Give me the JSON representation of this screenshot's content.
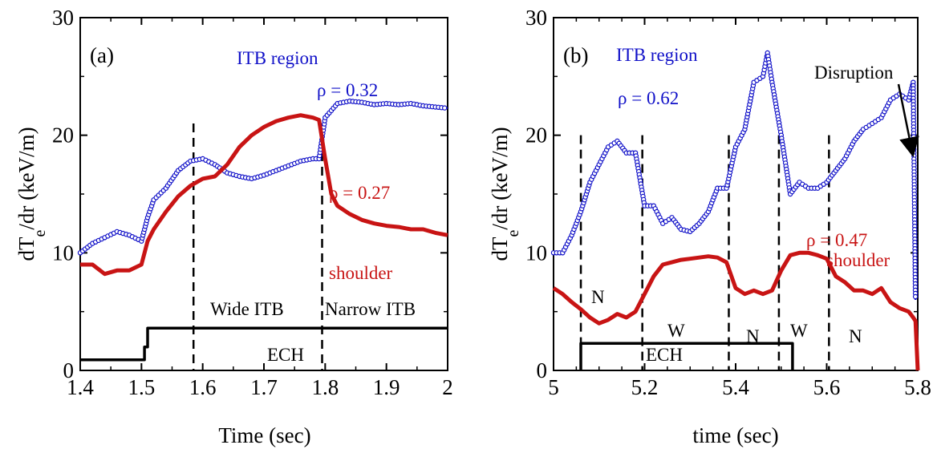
{
  "chart_data": [
    {
      "panel_label": "(a)",
      "type": "line",
      "xlabel": "Time (sec)",
      "ylabel": "dT",
      "ylabel_sub": "e",
      "ylabel_tail": "/dr (keV/m)",
      "xlim": [
        1.4,
        2.0
      ],
      "ylim": [
        0,
        30
      ],
      "xticks": [
        "1.4",
        "1.5",
        "1.6",
        "1.7",
        "1.8",
        "1.9",
        "2"
      ],
      "yticks": [
        "0",
        "10",
        "20",
        "30"
      ],
      "vlines": [
        1.585,
        1.795
      ],
      "series": [
        {
          "name": "ρ = 0.32",
          "color": "#1010c8",
          "marker": "circle",
          "x": [
            1.4,
            1.42,
            1.44,
            1.46,
            1.48,
            1.5,
            1.51,
            1.52,
            1.54,
            1.56,
            1.58,
            1.6,
            1.62,
            1.64,
            1.66,
            1.68,
            1.7,
            1.72,
            1.74,
            1.76,
            1.78,
            1.79,
            1.8,
            1.82,
            1.84,
            1.86,
            1.88,
            1.9,
            1.92,
            1.94,
            1.96,
            1.98,
            2.0
          ],
          "y": [
            10.0,
            10.8,
            11.3,
            11.8,
            11.5,
            11.0,
            13.0,
            14.5,
            15.5,
            17.0,
            17.8,
            18.0,
            17.5,
            16.8,
            16.5,
            16.3,
            16.6,
            17.0,
            17.4,
            17.8,
            18.0,
            18.0,
            21.5,
            22.7,
            22.9,
            22.8,
            22.6,
            22.7,
            22.6,
            22.7,
            22.5,
            22.4,
            22.3
          ]
        },
        {
          "name": "ρ = 0.27",
          "color": "#c81414",
          "marker": "none",
          "x": [
            1.4,
            1.42,
            1.44,
            1.46,
            1.48,
            1.5,
            1.51,
            1.52,
            1.54,
            1.56,
            1.58,
            1.6,
            1.62,
            1.64,
            1.66,
            1.68,
            1.7,
            1.72,
            1.74,
            1.76,
            1.78,
            1.79,
            1.8,
            1.81,
            1.82,
            1.84,
            1.86,
            1.88,
            1.9,
            1.92,
            1.94,
            1.96,
            1.98,
            2.0
          ],
          "y": [
            9.0,
            9.0,
            8.2,
            8.5,
            8.5,
            9.0,
            11.0,
            12.0,
            13.5,
            14.8,
            15.7,
            16.3,
            16.5,
            17.5,
            19.0,
            20.0,
            20.7,
            21.2,
            21.5,
            21.7,
            21.5,
            21.3,
            18.0,
            15.0,
            14.0,
            13.3,
            12.8,
            12.5,
            12.3,
            12.2,
            12.0,
            12.0,
            11.7,
            11.5
          ]
        },
        {
          "name": "ECH",
          "color": "#000000",
          "marker": "none",
          "step": true,
          "x": [
            1.4,
            1.505,
            1.505,
            1.51,
            1.51,
            2.0
          ],
          "y": [
            0.9,
            0.9,
            2.0,
            2.0,
            3.6,
            3.6
          ]
        }
      ],
      "annotations": [
        {
          "text": "ITB region",
          "color": "#1010c8"
        },
        {
          "text": "ρ = 0.32",
          "color": "#1010c8"
        },
        {
          "text": "ρ = 0.27",
          "color": "#c81414"
        },
        {
          "text": "shoulder",
          "color": "#c81414"
        },
        {
          "text": "Wide ITB",
          "color": "#000000"
        },
        {
          "text": "Narrow ITB",
          "color": "#000000"
        },
        {
          "text": "ECH",
          "color": "#000000"
        }
      ]
    },
    {
      "panel_label": "(b)",
      "type": "line",
      "xlabel": "time (sec)",
      "ylabel": "dT",
      "ylabel_sub": "e",
      "ylabel_tail": "/dr (keV/m)",
      "xlim": [
        5.0,
        5.8
      ],
      "ylim": [
        0,
        30
      ],
      "xticks": [
        "5",
        "5.2",
        "5.4",
        "5.6",
        "5.8"
      ],
      "yticks": [
        "0",
        "10",
        "20",
        "30"
      ],
      "vlines": [
        5.06,
        5.195,
        5.385,
        5.495,
        5.605
      ],
      "series": [
        {
          "name": "ρ = 0.62",
          "color": "#1010c8",
          "marker": "circle",
          "x": [
            5.0,
            5.02,
            5.04,
            5.06,
            5.08,
            5.1,
            5.12,
            5.14,
            5.16,
            5.18,
            5.2,
            5.22,
            5.24,
            5.26,
            5.28,
            5.3,
            5.32,
            5.34,
            5.36,
            5.38,
            5.4,
            5.42,
            5.44,
            5.46,
            5.47,
            5.48,
            5.5,
            5.52,
            5.54,
            5.56,
            5.58,
            5.6,
            5.62,
            5.64,
            5.66,
            5.68,
            5.7,
            5.72,
            5.74,
            5.76,
            5.78,
            5.79,
            5.795
          ],
          "y": [
            10.0,
            10.0,
            11.5,
            13.5,
            16.0,
            17.5,
            19.0,
            19.5,
            18.5,
            18.5,
            14.0,
            14.0,
            12.5,
            13.0,
            12.0,
            11.8,
            12.5,
            13.5,
            15.5,
            15.5,
            19.0,
            20.5,
            24.5,
            25.0,
            27.0,
            24.5,
            20.0,
            15.0,
            16.0,
            15.5,
            15.5,
            16.0,
            17.0,
            18.0,
            19.5,
            20.5,
            21.0,
            21.5,
            23.0,
            23.5,
            23.0,
            24.5,
            6.0
          ]
        },
        {
          "name": "ρ = 0.47",
          "color": "#c81414",
          "marker": "none",
          "x": [
            5.0,
            5.02,
            5.04,
            5.06,
            5.08,
            5.1,
            5.12,
            5.14,
            5.16,
            5.18,
            5.2,
            5.22,
            5.24,
            5.26,
            5.28,
            5.3,
            5.32,
            5.34,
            5.36,
            5.38,
            5.4,
            5.42,
            5.44,
            5.46,
            5.48,
            5.5,
            5.52,
            5.54,
            5.56,
            5.58,
            5.6,
            5.62,
            5.64,
            5.66,
            5.68,
            5.7,
            5.72,
            5.74,
            5.76,
            5.78,
            5.79,
            5.795,
            5.8
          ],
          "y": [
            7.0,
            6.5,
            5.8,
            5.2,
            4.5,
            4.0,
            4.3,
            4.8,
            4.5,
            5.0,
            6.5,
            8.0,
            9.0,
            9.2,
            9.4,
            9.5,
            9.6,
            9.7,
            9.6,
            9.2,
            7.0,
            6.5,
            6.8,
            6.5,
            6.8,
            8.5,
            9.8,
            10.0,
            10.0,
            9.8,
            9.5,
            8.0,
            7.5,
            6.8,
            6.8,
            6.5,
            7.0,
            5.8,
            5.3,
            5.0,
            4.5,
            4.2,
            0.0
          ]
        },
        {
          "name": "ECH",
          "color": "#000000",
          "marker": "none",
          "step": true,
          "x": [
            5.06,
            5.06,
            5.525,
            5.525
          ],
          "y": [
            0.0,
            2.3,
            2.3,
            0.0
          ]
        }
      ],
      "annotations": [
        {
          "text": "ITB region",
          "color": "#1010c8"
        },
        {
          "text": "ρ = 0.62",
          "color": "#1010c8"
        },
        {
          "text": "ρ = 0.47",
          "color": "#c81414"
        },
        {
          "text": "shoulder",
          "color": "#c81414"
        },
        {
          "text": "Disruption",
          "color": "#000000"
        },
        {
          "text": "N",
          "color": "#000000"
        },
        {
          "text": "W",
          "color": "#000000"
        },
        {
          "text": "N",
          "color": "#000000"
        },
        {
          "text": "W",
          "color": "#000000"
        },
        {
          "text": "N",
          "color": "#000000"
        },
        {
          "text": "ECH",
          "color": "#000000"
        }
      ]
    }
  ]
}
